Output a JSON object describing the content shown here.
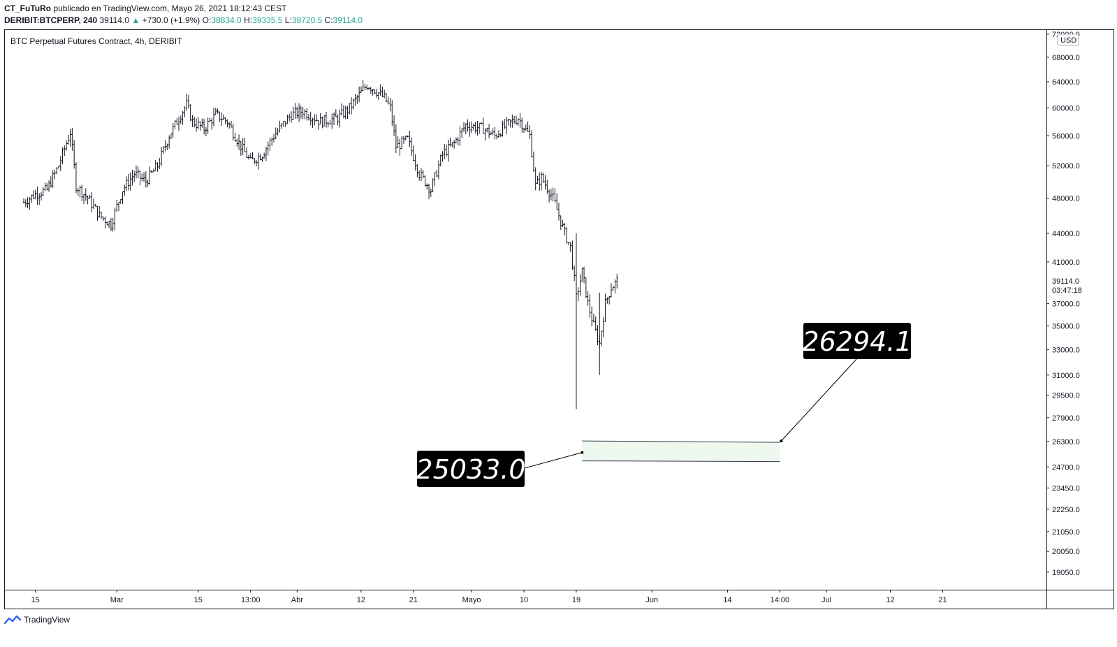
{
  "header": {
    "author": "CT_FuTuRo",
    "published_text": "publicado en TradingView.com, Mayo 26, 2021 18:12:43 CEST",
    "symbol": "DERIBIT:BTCPERP, 240",
    "last": "39114.0",
    "change": "+730.0 (+1.9%)",
    "o_label": "O:",
    "o_value": "38834.0",
    "h_label": "H:",
    "h_value": "39335.5",
    "l_label": "L:",
    "l_value": "38720.5",
    "c_label": "C:",
    "c_value": "39114.0"
  },
  "footer": {
    "brand": "TradingView"
  },
  "colors": {
    "bars": "#131722",
    "up": "#26a69a",
    "zone_fill": "#eef8ee",
    "label_bg": "#000000",
    "axis_border": "#131722"
  },
  "chart_data": {
    "type": "line",
    "title": "BTC Perpetual Futures Contract, 4h, DERIBIT",
    "currency_tag": "USD",
    "y_scale": "log",
    "ylim": [
      17500,
      73000
    ],
    "y_ticks": [
      {
        "value": 72000,
        "label": "72000.0"
      },
      {
        "value": 68000,
        "label": "68000.0"
      },
      {
        "value": 64000,
        "label": "64000.0"
      },
      {
        "value": 60000,
        "label": "60000.0"
      },
      {
        "value": 56000,
        "label": "56000.0"
      },
      {
        "value": 52000,
        "label": "52000.0"
      },
      {
        "value": 48000,
        "label": "48000.0"
      },
      {
        "value": 44000,
        "label": "44000.0"
      },
      {
        "value": 41000,
        "label": "41000.0"
      },
      {
        "value": 37000,
        "label": "37000.0"
      },
      {
        "value": 35000,
        "label": "35000.0"
      },
      {
        "value": 33000,
        "label": "33000.0"
      },
      {
        "value": 31000,
        "label": "31000.0"
      },
      {
        "value": 29500,
        "label": "29500.0"
      },
      {
        "value": 27900,
        "label": "27900.0"
      },
      {
        "value": 26300,
        "label": "26300.0"
      },
      {
        "value": 24700,
        "label": "24700.0"
      },
      {
        "value": 23450,
        "label": "23450.0"
      },
      {
        "value": 22250,
        "label": "22250.0"
      },
      {
        "value": 21050,
        "label": "21050.0"
      },
      {
        "value": 20050,
        "label": "20050.0"
      },
      {
        "value": 19050,
        "label": "19050.0"
      }
    ],
    "last_price": {
      "value": 39114,
      "label": "39114.0",
      "countdown": "03:47:18"
    },
    "x_start": "2021-02-13",
    "x_end": "2021-06-28",
    "x_ticks": [
      {
        "date": "2021-02-15",
        "label": "15"
      },
      {
        "date": "2021-03-01",
        "label": "Mar"
      },
      {
        "date": "2021-03-15",
        "label": "15"
      },
      {
        "date": "2021-03-24",
        "label": "13:00"
      },
      {
        "date": "2021-04-01",
        "label": "Abr"
      },
      {
        "date": "2021-04-12",
        "label": "12"
      },
      {
        "date": "2021-04-21",
        "label": "21"
      },
      {
        "date": "2021-05-01",
        "label": "Mayo"
      },
      {
        "date": "2021-05-10",
        "label": "10"
      },
      {
        "date": "2021-05-19",
        "label": "19"
      },
      {
        "date": "2021-06-01",
        "label": "Jun"
      },
      {
        "date": "2021-06-14",
        "label": "14"
      },
      {
        "date": "2021-06-23",
        "label": "14:00"
      },
      {
        "date": "2021-07-01",
        "label": "Jul"
      },
      {
        "date": "2021-07-12",
        "label": "12"
      },
      {
        "date": "2021-07-21",
        "label": "21"
      }
    ],
    "series": [
      {
        "x": [
          "2021-02-13",
          "2021-02-15",
          "2021-02-17",
          "2021-02-19",
          "2021-02-21",
          "2021-02-22",
          "2021-02-24",
          "2021-02-26",
          "2021-02-28",
          "2021-03-02",
          "2021-03-04",
          "2021-03-06",
          "2021-03-08",
          "2021-03-10",
          "2021-03-13",
          "2021-03-14",
          "2021-03-16",
          "2021-03-18",
          "2021-03-20",
          "2021-03-22",
          "2021-03-24",
          "2021-03-26",
          "2021-03-28",
          "2021-03-31",
          "2021-04-02",
          "2021-04-05",
          "2021-04-08",
          "2021-04-10",
          "2021-04-13",
          "2021-04-14",
          "2021-04-16",
          "2021-04-17",
          "2021-04-18",
          "2021-04-20",
          "2021-04-22",
          "2021-04-24",
          "2021-04-26",
          "2021-04-28",
          "2021-04-30",
          "2021-05-03",
          "2021-05-05",
          "2021-05-07",
          "2021-05-09",
          "2021-05-11",
          "2021-05-12",
          "2021-05-13",
          "2021-05-15",
          "2021-05-17",
          "2021-05-18",
          "2021-05-19",
          "2021-05-20",
          "2021-05-21",
          "2021-05-22",
          "2021-05-23",
          "2021-05-24",
          "2021-05-25",
          "2021-05-26"
        ],
        "values": [
          47500,
          48500,
          49000,
          52000,
          56500,
          49500,
          48000,
          46000,
          45000,
          49000,
          51000,
          50000,
          52000,
          56000,
          60500,
          58000,
          57000,
          59000,
          58000,
          55000,
          52500,
          53500,
          56000,
          59000,
          59500,
          58000,
          58500,
          60000,
          63500,
          63000,
          61500,
          60000,
          54500,
          55500,
          51000,
          49000,
          53500,
          55000,
          57500,
          57000,
          56000,
          57500,
          58500,
          56000,
          49500,
          50500,
          48000,
          44000,
          42500,
          37500,
          40000,
          37000,
          35000,
          33500,
          37000,
          38500,
          39114
        ]
      }
    ],
    "annotations": [
      {
        "type": "callout",
        "text": "26294.1",
        "value": 26294.1
      },
      {
        "type": "callout",
        "text": "25033.0",
        "value": 25033.0
      },
      {
        "type": "zone",
        "from_date": "2021-05-20",
        "to_date": "2021-06-23",
        "low": 25033.0,
        "high": 26294.1
      }
    ],
    "grid": false,
    "legend": "none"
  }
}
